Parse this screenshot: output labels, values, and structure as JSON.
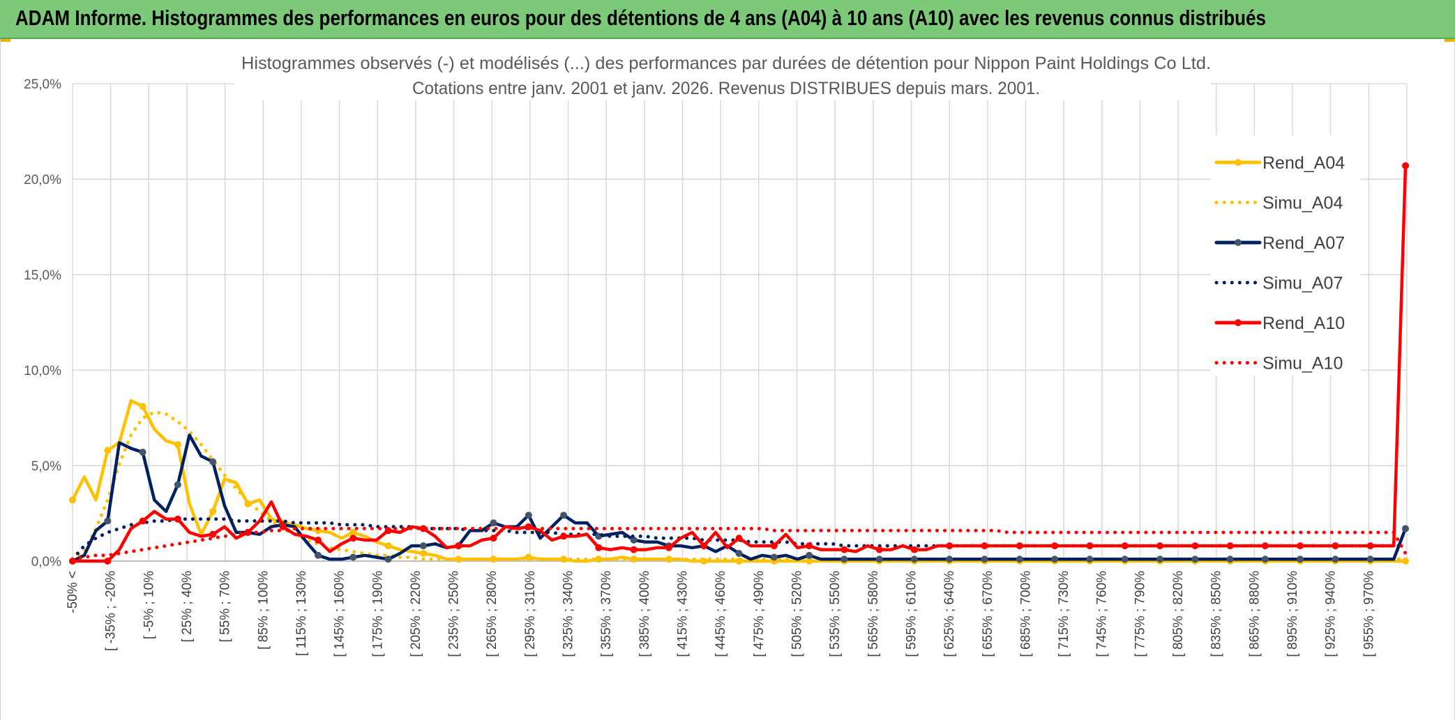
{
  "header": {
    "banner": "ADAM Informe. Histogrammes des performances en euros pour des détentions de 4 ans (A04) à 10 ans (A10) avec les revenus connus distribués"
  },
  "chart_data": {
    "type": "line",
    "title": "Histogrammes observés (-) et modélisés (...) des performances par durées de détention pour Nippon Paint Holdings Co Ltd.",
    "subtitle": "Cotations entre janv. 2001 et janv. 2026.  Revenus DISTRIBUES depuis mars. 2001.",
    "ylim": [
      0,
      25
    ],
    "yticks": [
      "0,0%",
      "5,0%",
      "10,0%",
      "15,0%",
      "20,0%",
      "25,0%"
    ],
    "grid": true,
    "legend_position": "right",
    "x_tick_labels": [
      "-50% <",
      "[ -35% ; -20%",
      "[ -5% ; 10%",
      "[ 25% ; 40%",
      "[ 55% ; 70%",
      "[ 85% ; 100%",
      "[ 115% ; 130%",
      "[ 145% ; 160%",
      "[ 175% ; 190%",
      "[ 205% ; 220%",
      "[ 235% ; 250%",
      "[ 265% ; 280%",
      "[ 295% ; 310%",
      "[ 325% ; 340%",
      "[ 355% ; 370%",
      "[ 385% ; 400%",
      "[ 415% ; 430%",
      "[ 445% ; 460%",
      "[ 475% ; 490%",
      "[ 505% ; 520%",
      "[ 535% ; 550%",
      "[ 565% ; 580%",
      "[ 595% ; 610%",
      "[ 625% ; 640%",
      "[ 655% ; 670%",
      "[ 685% ; 700%",
      "[ 715% ; 730%",
      "[ 745% ; 760%",
      "[ 775% ; 790%",
      "[ 805% ; 820%",
      "[ 835% ; 850%",
      "[ 865% ; 880%",
      "[ 895% ; 910%",
      "[ 925% ; 940%",
      "[ 955% ; 970%"
    ],
    "series": [
      {
        "name": "Rend_A04",
        "style": "solid",
        "color": "#ffc000",
        "values": [
          3.2,
          4.4,
          3.2,
          5.8,
          6.2,
          8.4,
          8.1,
          6.9,
          6.3,
          6.1,
          3.0,
          1.4,
          2.6,
          4.3,
          4.1,
          3.0,
          3.2,
          2.2,
          2.0,
          1.9,
          1.7,
          1.6,
          1.5,
          1.2,
          1.5,
          1.3,
          1.0,
          0.8,
          0.6,
          0.5,
          0.4,
          0.3,
          0.1,
          0.1,
          0.1,
          0.1,
          0.1,
          0.1,
          0.1,
          0.2,
          0.1,
          0.1,
          0.1,
          0.0,
          0.0,
          0.1,
          0.1,
          0.2,
          0.1,
          0.1,
          0.1,
          0.1,
          0.1,
          0.0,
          0.0,
          0.0,
          0.0,
          0.0,
          0.0,
          0.0,
          0.0,
          0.0,
          0.0,
          0.0,
          0.0,
          0.0,
          0.0,
          0.0,
          0.0,
          0.0,
          0.0,
          0.0,
          0.0,
          0.0,
          0.0,
          0.0,
          0.0,
          0.0,
          0.0,
          0.0,
          0.0,
          0.0,
          0.0,
          0.0,
          0.0,
          0.0,
          0.0,
          0.0,
          0.0,
          0.0,
          0.0,
          0.0,
          0.0,
          0.0,
          0.0,
          0.0,
          0.0,
          0.0,
          0.0,
          0.0,
          0.0,
          0.0,
          0.0,
          0.0,
          0.0,
          0.0,
          0.0,
          0.0,
          0.0,
          0.0,
          0.0,
          0.0,
          0.0,
          0.0,
          0.0
        ]
      },
      {
        "name": "Simu_A04",
        "style": "dotted",
        "color": "#ffc000",
        "values": [
          0.1,
          0.5,
          1.7,
          3.2,
          5.1,
          6.6,
          7.5,
          7.8,
          7.7,
          7.3,
          6.8,
          6.1,
          5.3,
          4.5,
          3.8,
          3.1,
          2.6,
          2.1,
          1.7,
          1.4,
          1.1,
          0.9,
          0.7,
          0.6,
          0.5,
          0.4,
          0.3,
          0.3,
          0.2,
          0.2,
          0.1,
          0.1,
          0.1,
          0.1,
          0.1,
          0.1,
          0.1,
          0.1,
          0.1,
          0.1,
          0.1,
          0.1,
          0.1,
          0.1,
          0.1,
          0.1,
          0.1,
          0.1,
          0.1,
          0.1,
          0.1,
          0.1,
          0.1,
          0.1,
          0.1,
          0.1,
          0.1,
          0.1,
          0.1,
          0.1,
          0.1,
          0.1,
          0.1,
          0.1,
          0.1,
          0.1,
          0.1,
          0.1,
          0.1,
          0.1,
          0.1,
          0.1,
          0.1,
          0.1,
          0.1,
          0.1,
          0.1,
          0.1,
          0.1,
          0.1,
          0.1,
          0.1,
          0.1,
          0.1,
          0.1,
          0.1,
          0.1,
          0.1,
          0.1,
          0.1,
          0.1,
          0.1,
          0.1,
          0.1,
          0.1,
          0.1,
          0.1,
          0.1,
          0.1,
          0.1,
          0.1,
          0.1,
          0.1,
          0.1,
          0.1,
          0.1,
          0.1,
          0.1,
          0.1,
          0.1,
          0.1,
          0.1,
          0.1,
          0.1,
          0.1
        ]
      },
      {
        "name": "Rend_A07",
        "style": "solid-marker",
        "color": "#002060",
        "values": [
          0.0,
          0.3,
          1.6,
          2.1,
          6.2,
          5.9,
          5.7,
          3.2,
          2.6,
          4.0,
          6.6,
          5.5,
          5.2,
          2.9,
          1.5,
          1.5,
          1.4,
          1.8,
          1.9,
          1.8,
          1.0,
          0.3,
          0.1,
          0.1,
          0.2,
          0.3,
          0.2,
          0.1,
          0.4,
          0.8,
          0.8,
          0.9,
          0.7,
          0.8,
          1.6,
          1.6,
          2.0,
          1.8,
          1.8,
          2.4,
          1.2,
          1.8,
          2.4,
          2.0,
          2.0,
          1.3,
          1.4,
          1.5,
          1.1,
          1.0,
          1.0,
          0.8,
          0.8,
          0.7,
          0.8,
          0.5,
          0.8,
          0.4,
          0.1,
          0.3,
          0.2,
          0.3,
          0.1,
          0.3,
          0.1,
          0.1,
          0.1,
          0.1,
          0.1,
          0.1,
          0.1,
          0.1,
          0.1,
          0.1,
          0.1,
          0.1,
          0.1,
          0.1,
          0.1,
          0.1,
          0.1,
          0.1,
          0.1,
          0.1,
          0.1,
          0.1,
          0.1,
          0.1,
          0.1,
          0.1,
          0.1,
          0.1,
          0.1,
          0.1,
          0.1,
          0.1,
          0.1,
          0.1,
          0.1,
          0.1,
          0.1,
          0.1,
          0.1,
          0.1,
          0.1,
          0.1,
          0.1,
          0.1,
          0.1,
          0.1,
          0.1,
          0.1,
          0.1,
          0.1,
          1.7
        ]
      },
      {
        "name": "Simu_A07",
        "style": "dotted",
        "color": "#002060",
        "values": [
          0.1,
          0.8,
          1.2,
          1.5,
          1.7,
          1.9,
          2.0,
          2.1,
          2.1,
          2.2,
          2.2,
          2.2,
          2.2,
          2.2,
          2.1,
          2.1,
          2.1,
          2.1,
          2.1,
          2.0,
          2.0,
          2.0,
          2.0,
          1.9,
          1.9,
          1.9,
          1.8,
          1.8,
          1.8,
          1.8,
          1.7,
          1.7,
          1.7,
          1.7,
          1.6,
          1.6,
          1.6,
          1.6,
          1.5,
          1.5,
          1.5,
          1.5,
          1.4,
          1.4,
          1.4,
          1.4,
          1.3,
          1.3,
          1.3,
          1.3,
          1.2,
          1.2,
          1.2,
          1.2,
          1.1,
          1.1,
          1.1,
          1.1,
          1.0,
          1.0,
          1.0,
          1.0,
          0.9,
          0.9,
          0.9,
          0.9,
          0.8,
          0.8,
          0.8,
          0.8,
          0.8,
          0.8,
          0.8,
          0.8,
          0.8,
          0.8,
          0.8,
          0.8,
          0.8,
          0.8,
          0.8,
          0.8,
          0.8,
          0.8,
          0.8,
          0.8,
          0.8,
          0.8,
          0.8,
          0.8,
          0.8,
          0.8,
          0.8,
          0.8,
          0.8,
          0.8,
          0.8,
          0.8,
          0.8,
          0.8,
          0.8,
          0.8,
          0.8,
          0.8,
          0.8,
          0.8,
          0.8,
          0.8,
          0.8,
          0.8,
          0.8,
          0.8,
          0.8,
          0.8,
          0.8
        ]
      },
      {
        "name": "Rend_A10",
        "style": "solid-marker",
        "color": "#ff0000",
        "values": [
          0.0,
          0.0,
          0.0,
          0.0,
          0.6,
          1.7,
          2.1,
          2.6,
          2.2,
          2.2,
          1.5,
          1.3,
          1.4,
          1.8,
          1.2,
          1.5,
          2.1,
          3.1,
          1.8,
          1.4,
          1.3,
          1.1,
          0.5,
          0.9,
          1.2,
          1.1,
          1.1,
          1.6,
          1.5,
          1.8,
          1.7,
          1.3,
          0.7,
          0.8,
          0.8,
          1.1,
          1.2,
          1.8,
          1.7,
          1.8,
          1.6,
          1.1,
          1.3,
          1.3,
          1.4,
          0.7,
          0.6,
          0.7,
          0.6,
          0.6,
          0.7,
          0.7,
          1.2,
          1.5,
          0.8,
          1.5,
          0.7,
          1.2,
          0.8,
          0.8,
          0.8,
          1.4,
          0.7,
          0.8,
          0.6,
          0.6,
          0.6,
          0.5,
          0.8,
          0.6,
          0.6,
          0.8,
          0.6,
          0.6,
          0.8,
          0.8,
          0.8,
          0.8,
          0.8,
          0.8,
          0.8,
          0.8,
          0.8,
          0.8,
          0.8,
          0.8,
          0.8,
          0.8,
          0.8,
          0.8,
          0.8,
          0.8,
          0.8,
          0.8,
          0.8,
          0.8,
          0.8,
          0.8,
          0.8,
          0.8,
          0.8,
          0.8,
          0.8,
          0.8,
          0.8,
          0.8,
          0.8,
          0.8,
          0.8,
          0.8,
          0.8,
          0.8,
          0.8,
          0.8,
          20.7
        ]
      },
      {
        "name": "Simu_A10",
        "style": "dotted",
        "color": "#ff0000",
        "values": [
          0.1,
          0.2,
          0.3,
          0.3,
          0.4,
          0.5,
          0.6,
          0.7,
          0.8,
          0.9,
          1.0,
          1.1,
          1.2,
          1.3,
          1.4,
          1.5,
          1.5,
          1.6,
          1.6,
          1.7,
          1.7,
          1.7,
          1.7,
          1.7,
          1.7,
          1.7,
          1.7,
          1.7,
          1.7,
          1.7,
          1.7,
          1.7,
          1.7,
          1.7,
          1.7,
          1.7,
          1.7,
          1.7,
          1.7,
          1.7,
          1.7,
          1.7,
          1.7,
          1.7,
          1.7,
          1.7,
          1.7,
          1.7,
          1.7,
          1.7,
          1.7,
          1.7,
          1.7,
          1.7,
          1.7,
          1.7,
          1.7,
          1.7,
          1.7,
          1.7,
          1.6,
          1.6,
          1.6,
          1.6,
          1.6,
          1.6,
          1.6,
          1.6,
          1.6,
          1.6,
          1.6,
          1.6,
          1.6,
          1.6,
          1.6,
          1.6,
          1.6,
          1.6,
          1.6,
          1.6,
          1.5,
          1.5,
          1.5,
          1.5,
          1.5,
          1.5,
          1.5,
          1.5,
          1.5,
          1.5,
          1.5,
          1.5,
          1.5,
          1.5,
          1.5,
          1.5,
          1.5,
          1.5,
          1.5,
          1.5,
          1.5,
          1.5,
          1.5,
          1.5,
          1.5,
          1.5,
          1.5,
          1.5,
          1.5,
          1.5,
          1.5,
          1.5,
          1.5,
          1.5,
          0.4
        ]
      }
    ]
  }
}
